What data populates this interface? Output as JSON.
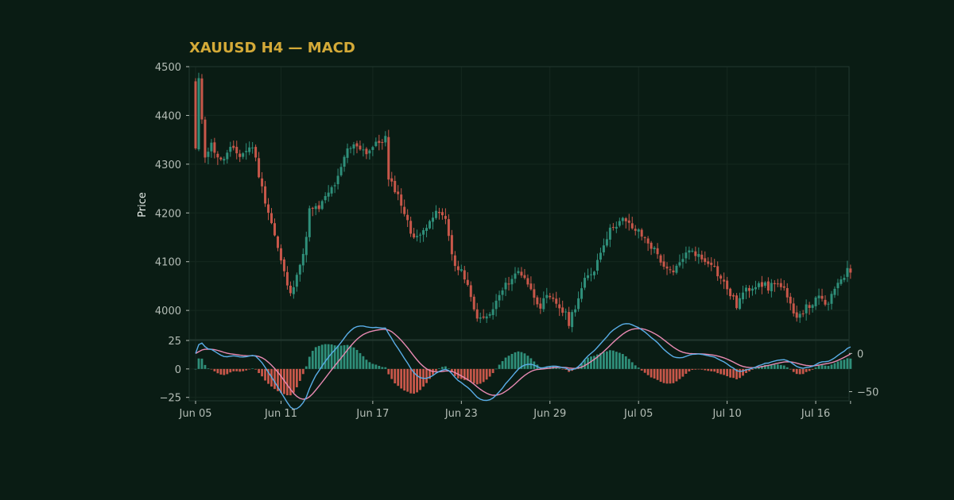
{
  "chart_data": {
    "type": "candlestick",
    "title": "XAUUSD H4 — MACD",
    "timeframe": "H4",
    "symbol": "XAUUSD",
    "ylabel": "Price",
    "price_ylim": [
      3940,
      4500
    ],
    "price_yticks": [
      4000,
      4100,
      4200,
      4300,
      4400,
      4500
    ],
    "hist_ylim": [
      -28,
      25
    ],
    "hist_yticks": [
      -25,
      0,
      25
    ],
    "macd_ylim": [
      -62,
      17
    ],
    "macd_yticks": [
      -50,
      0
    ],
    "x_tick_labels": [
      "Jun 05",
      "Jun 11",
      "Jun 17",
      "Jun 23",
      "Jun 29",
      "Jul 05",
      "Jul 10",
      "Jul 16"
    ],
    "x_tick_positions": [
      0,
      27,
      56,
      84,
      112,
      140,
      168,
      196
    ],
    "grid": true,
    "colors": {
      "background": "#0a1c14",
      "up": "#2f8f7a",
      "down": "#c8574a",
      "macd_line": "#5aaee8",
      "signal_line": "#e98ab3",
      "title": "#d4aa38",
      "tick_text": "#b4bdb6",
      "frame": "#23372f",
      "grid": "#15281f"
    },
    "anchors": [
      [
        0,
        4330
      ],
      [
        1,
        4470
      ],
      [
        3,
        4320
      ],
      [
        5,
        4340
      ],
      [
        8,
        4305
      ],
      [
        11,
        4330
      ],
      [
        14,
        4318
      ],
      [
        18,
        4338
      ],
      [
        21,
        4250
      ],
      [
        24,
        4180
      ],
      [
        27,
        4100
      ],
      [
        30,
        4030
      ],
      [
        32,
        4080
      ],
      [
        34,
        4110
      ],
      [
        36,
        4205
      ],
      [
        39,
        4210
      ],
      [
        42,
        4240
      ],
      [
        45,
        4270
      ],
      [
        48,
        4330
      ],
      [
        51,
        4340
      ],
      [
        54,
        4325
      ],
      [
        57,
        4340
      ],
      [
        60,
        4355
      ],
      [
        61,
        4265
      ],
      [
        63,
        4250
      ],
      [
        65,
        4220
      ],
      [
        68,
        4160
      ],
      [
        71,
        4150
      ],
      [
        74,
        4190
      ],
      [
        77,
        4200
      ],
      [
        79,
        4185
      ],
      [
        82,
        4090
      ],
      [
        85,
        4070
      ],
      [
        88,
        4000
      ],
      [
        90,
        3980
      ],
      [
        93,
        3990
      ],
      [
        96,
        4030
      ],
      [
        99,
        4060
      ],
      [
        102,
        4080
      ],
      [
        104,
        4070
      ],
      [
        106,
        4040
      ],
      [
        109,
        4010
      ],
      [
        111,
        4025
      ],
      [
        114,
        4015
      ],
      [
        117,
        3990
      ],
      [
        118,
        3975
      ],
      [
        120,
        4010
      ],
      [
        123,
        4060
      ],
      [
        126,
        4085
      ],
      [
        129,
        4140
      ],
      [
        132,
        4175
      ],
      [
        135,
        4185
      ],
      [
        137,
        4175
      ],
      [
        140,
        4160
      ],
      [
        143,
        4140
      ],
      [
        146,
        4115
      ],
      [
        149,
        4080
      ],
      [
        151,
        4075
      ],
      [
        154,
        4110
      ],
      [
        157,
        4125
      ],
      [
        160,
        4105
      ],
      [
        163,
        4100
      ],
      [
        165,
        4075
      ],
      [
        168,
        4045
      ],
      [
        171,
        4010
      ],
      [
        173,
        4035
      ],
      [
        176,
        4050
      ],
      [
        178,
        4060
      ],
      [
        181,
        4045
      ],
      [
        183,
        4060
      ],
      [
        186,
        4040
      ],
      [
        189,
        3990
      ],
      [
        191,
        3995
      ],
      [
        194,
        4010
      ],
      [
        197,
        4025
      ],
      [
        200,
        4010
      ],
      [
        203,
        4060
      ],
      [
        206,
        4080
      ],
      [
        207,
        4082
      ]
    ],
    "n_bars": 208,
    "seed": 11
  }
}
